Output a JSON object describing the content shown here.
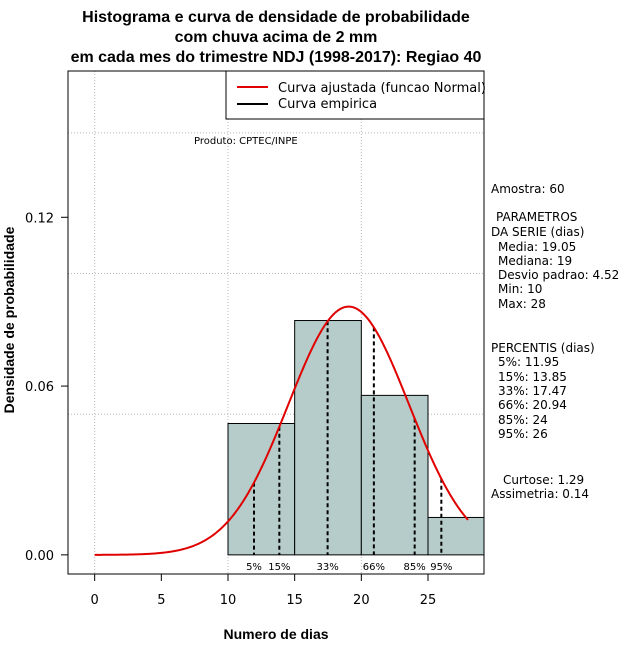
{
  "chart_data": {
    "type": "bar",
    "title_lines": [
      "Histograma e curva de densidade de probabilidade",
      "com chuva acima de 2 mm",
      "em cada mes do trimestre NDJ (1998-2017): Regiao 40"
    ],
    "xlabel": "Numero de dias",
    "ylabel": "Densidade de probabilidade",
    "xlim": [
      -2,
      29.2
    ],
    "ylim": [
      -0.0068,
      0.172
    ],
    "x_ticks": [
      0,
      5,
      10,
      15,
      20,
      25
    ],
    "y_ticks": [
      0.0,
      0.06,
      0.12
    ],
    "y_tick_labels": [
      "0.00",
      "0.06",
      "0.12"
    ],
    "grid_x": [
      0,
      10,
      20
    ],
    "grid_y": [
      0.05,
      0.1,
      0.15
    ],
    "histogram": {
      "bins": [
        [
          10,
          15
        ],
        [
          15,
          20
        ],
        [
          20,
          25
        ],
        [
          25,
          30
        ]
      ],
      "density": [
        0.0467,
        0.0833,
        0.0567,
        0.0133
      ],
      "fill": "#b5ccca"
    },
    "normal_curve": {
      "name": "Curva ajustada (funcao Normal)",
      "mean": 19.05,
      "sd": 4.52,
      "x_range": [
        0,
        28
      ],
      "color": "#e00000"
    },
    "percentile_markers": [
      {
        "label": "5%",
        "x": 11.95
      },
      {
        "label": "15%",
        "x": 13.85
      },
      {
        "label": "33%",
        "x": 17.47
      },
      {
        "label": "66%",
        "x": 20.94
      },
      {
        "label": "85%",
        "x": 24
      },
      {
        "label": "95%",
        "x": 26
      }
    ],
    "legend": [
      {
        "label": "Curva ajustada (funcao Normal)",
        "color": "#e00000"
      },
      {
        "label": "Curva empirica",
        "color": "#000000"
      }
    ],
    "annotation": "Produto: CPTEC/INPE"
  },
  "stats": {
    "amostra": "Amostra: 60",
    "parametros_title_1": "PARAMETROS",
    "parametros_title_2": "DA SERIE (dias)",
    "media": "Media: 19.05",
    "mediana": "Mediana: 19",
    "desvio": "Desvio padrao: 4.52",
    "min": "Min: 10",
    "max": "Max: 28",
    "percentis_title": "PERCENTIS (dias)",
    "p5": "5%: 11.95",
    "p15": "15%: 13.85",
    "p33": "33%: 17.47",
    "p66": "66%: 20.94",
    "p85": "85%: 24",
    "p95": "95%: 26",
    "curtose": "Curtose: 1.29",
    "assimetria": "Assimetria: 0.14"
  }
}
